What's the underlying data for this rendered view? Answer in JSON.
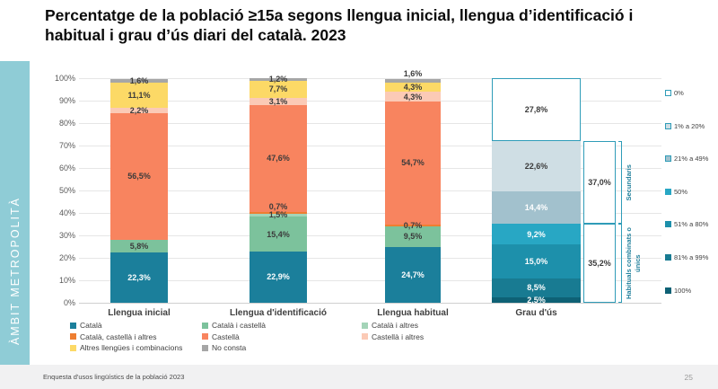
{
  "title": "Percentatge de la població ≥15a segons llengua inicial, llengua d’identificació i habitual i grau d’ús diari del català. 2023",
  "sidebar": {
    "label": "ÀMBIT METROPOLITÀ",
    "bg": "#8fccd6"
  },
  "footer": {
    "source": "Enquesta d'usos lingüístics de la població 2023",
    "page": "25"
  },
  "palette": {
    "Català": {
      "fill": "#1b7f9b",
      "text": "#ffffff"
    },
    "Català i castellà": {
      "fill": "#7cc29c",
      "text": "#3b3b3b"
    },
    "Català i altres": {
      "fill": "#a4d4b8",
      "text": "#3b3b3b"
    },
    "Català, castellà i altres": {
      "fill": "#ee7e31",
      "text": "#3b3b3b"
    },
    "Castellà": {
      "fill": "#f8845f",
      "text": "#3b3b3b"
    },
    "Castellà i altres": {
      "fill": "#fbcab6",
      "text": "#3b3b3b"
    },
    "Altres llengües i combinacions": {
      "fill": "#fcd966",
      "text": "#3b3b3b"
    },
    "No consta": {
      "fill": "#a6a6a6",
      "text": "#3b3b3b"
    },
    "0%": {
      "fill": "#ffffff",
      "text": "#3b3b3b",
      "border": "#2f9cb8"
    },
    "1% a 20%": {
      "fill": "#cfdee4",
      "text": "#3b3b3b",
      "legend_border": "#2f9cb8"
    },
    "21% a 49%": {
      "fill": "#a2c1cd",
      "text": "#ffffff",
      "legend_border": "#2f9cb8"
    },
    "50%": {
      "fill": "#28a7c4",
      "text": "#ffffff"
    },
    "51% a 80%": {
      "fill": "#1d90ab",
      "text": "#ffffff"
    },
    "81% a 99%": {
      "fill": "#187b92",
      "text": "#ffffff"
    },
    "100%": {
      "fill": "#0e6175",
      "text": "#ffffff"
    }
  },
  "chart_data": {
    "type": "bar",
    "stacked": true,
    "unit": "%",
    "ylim": [
      0,
      100
    ],
    "grid": true,
    "yticks": [
      "0%",
      "10%",
      "20%",
      "30%",
      "40%",
      "50%",
      "60%",
      "70%",
      "80%",
      "90%",
      "100%"
    ],
    "categories": [
      "Llengua inicial",
      "Llengua d'identificació",
      "Llengua habitual",
      "Grau d'ús"
    ],
    "bars": [
      {
        "category": "Llengua inicial",
        "segments": [
          {
            "name": "Català",
            "value": 22.3,
            "label": "22,3%"
          },
          {
            "name": "Català i castellà",
            "value": 5.8,
            "label": "5,8%"
          },
          {
            "name": "Castellà",
            "value": 56.5,
            "label": "56,5%"
          },
          {
            "name": "Castellà i altres",
            "value": 2.2,
            "label": "2,2%"
          },
          {
            "name": "Altres llengües i combinacions",
            "value": 11.1,
            "label": "11,1%"
          },
          {
            "name": "No consta",
            "value": 1.6,
            "label": "1,6%"
          }
        ]
      },
      {
        "category": "Llengua d'identificació",
        "segments": [
          {
            "name": "Català",
            "value": 22.9,
            "label": "22,9%"
          },
          {
            "name": "Català i castellà",
            "value": 15.4,
            "label": "15,4%"
          },
          {
            "name": "Català i altres",
            "value": 1.5,
            "label": "1,5%"
          },
          {
            "name": "Català, castellà i altres",
            "value": 0.7,
            "label": "0,7%"
          },
          {
            "name": "Castellà",
            "value": 47.6,
            "label": "47,6%"
          },
          {
            "name": "Castellà i altres",
            "value": 3.1,
            "label": "3,1%"
          },
          {
            "name": "Altres llengües i combinacions",
            "value": 7.7,
            "label": "7,7%"
          },
          {
            "name": "No consta",
            "value": 1.2,
            "label": "1,2%"
          }
        ]
      },
      {
        "category": "Llengua habitual",
        "segments": [
          {
            "name": "Català",
            "value": 24.7,
            "label": "24,7%"
          },
          {
            "name": "Català i castellà",
            "value": 9.5,
            "label": "9,5%"
          },
          {
            "name": "Català, castellà i altres",
            "value": 0.7,
            "label": "0,7%"
          },
          {
            "name": "Castellà",
            "value": 54.7,
            "label": "54,7%"
          },
          {
            "name": "Castellà i altres",
            "value": 4.3,
            "label": "4,3%"
          },
          {
            "name": "Altres llengües i combinacions",
            "value": 4.3,
            "label": "4,3%"
          },
          {
            "name": "No consta",
            "value": 1.6,
            "label": "1,6%",
            "label_above": true
          }
        ]
      },
      {
        "category": "Grau d'ús",
        "segments": [
          {
            "name": "100%",
            "value": 2.5,
            "label": "2,5%"
          },
          {
            "name": "81% a 99%",
            "value": 8.5,
            "label": "8,5%"
          },
          {
            "name": "51% a 80%",
            "value": 15.0,
            "label": "15,0%"
          },
          {
            "name": "50%",
            "value": 9.2,
            "label": "9,2%"
          },
          {
            "name": "21% a 49%",
            "value": 14.4,
            "label": "14,4%"
          },
          {
            "name": "1% a 20%",
            "value": 22.6,
            "label": "22,6%"
          },
          {
            "name": "0%",
            "value": 27.8,
            "label": "27,8%"
          }
        ]
      }
    ],
    "annotations": [
      {
        "label": "Secundaris",
        "value": 37.0,
        "value_label": "37,0%",
        "covers": [
          "21% a 49%",
          "1% a 20%"
        ]
      },
      {
        "label": "Habituals combinats o únics",
        "value": 35.2,
        "value_label": "35,2%",
        "covers": [
          "100%",
          "81% a 99%",
          "51% a 80%",
          "50%"
        ]
      }
    ],
    "grau_legend": [
      "0%",
      "1% a 20%",
      "21% a 49%",
      "50%",
      "51% a 80%",
      "81% a 99%",
      "100%"
    ],
    "legend_position": "bottom"
  },
  "legend": {
    "columns": [
      {
        "items": [
          "Català",
          "Català, castellà i altres",
          "Altres llengües i combinacions"
        ]
      },
      {
        "items": [
          "Català i castellà",
          "Castellà",
          "No consta"
        ]
      },
      {
        "items": [
          "Català i altres",
          "Castellà i altres"
        ]
      }
    ]
  }
}
